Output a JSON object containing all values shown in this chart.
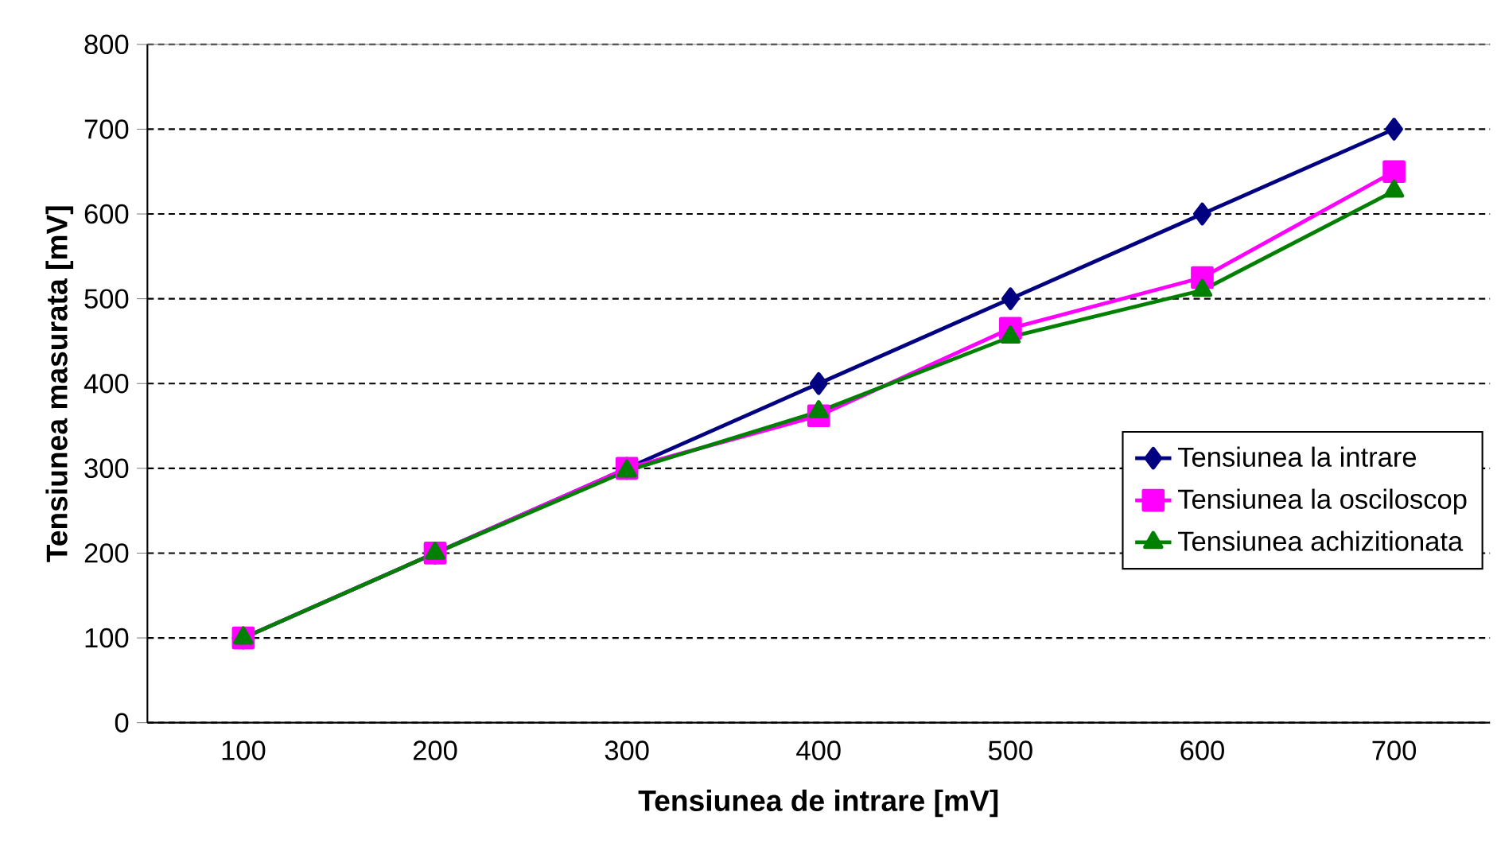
{
  "chart_data": {
    "type": "line",
    "xlabel": "Tensiunea de intrare [mV]",
    "ylabel": "Tensiunea masurata [mV]",
    "categories": [
      "100",
      "200",
      "300",
      "400",
      "500",
      "600",
      "700"
    ],
    "series": [
      {
        "name": "Tensiunea la intrare",
        "color": "#000080",
        "marker": "diamond",
        "values": [
          100,
          200,
          300,
          400,
          500,
          600,
          700
        ]
      },
      {
        "name": "Tensiunea la osciloscop",
        "color": "#ff00ff",
        "marker": "square",
        "values": [
          100,
          200,
          300,
          362,
          465,
          525,
          650
        ]
      },
      {
        "name": "Tensiunea achizitionata",
        "color": "#008000",
        "marker": "triangle",
        "values": [
          100,
          200,
          297,
          367,
          455,
          510,
          627
        ]
      }
    ],
    "ylim": [
      0,
      800
    ],
    "yticks": [
      0,
      100,
      200,
      300,
      400,
      500,
      600,
      700,
      800
    ],
    "grid": "y",
    "legend": "right",
    "line_style": "solid"
  }
}
